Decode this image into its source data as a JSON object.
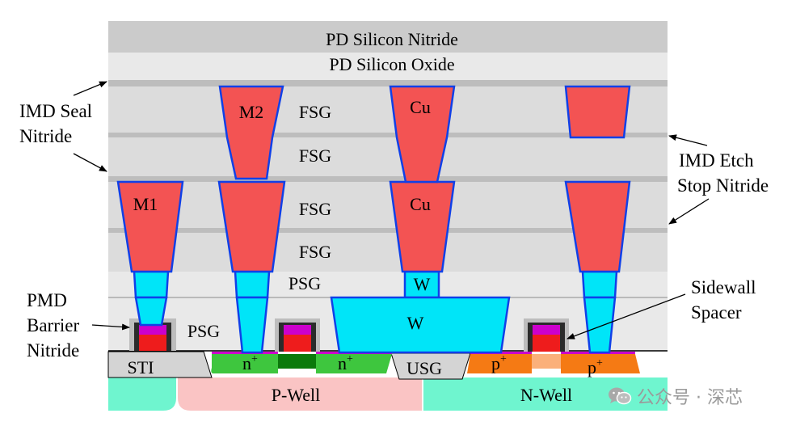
{
  "layers": {
    "pd_nitride": "PD Silicon Nitride",
    "pd_oxide": "PD Silicon Oxide",
    "fsg": "FSG",
    "psg": "PSG",
    "usg": "USG",
    "sti": "STI"
  },
  "metals": {
    "m2": "M2",
    "m1": "M1",
    "cu": "Cu",
    "w": "W"
  },
  "doping": {
    "n": "n",
    "p": "p",
    "plus": "+",
    "p_well": "P-Well",
    "n_well": "N-Well"
  },
  "callouts": {
    "imd_seal": [
      "IMD Seal",
      "Nitride"
    ],
    "imd_etch": [
      "IMD Etch",
      "Stop Nitride"
    ],
    "pmd_barrier": [
      "PMD",
      "Barrier",
      "Nitride"
    ],
    "sidewall": [
      "Sidewall",
      "Spacer"
    ]
  },
  "watermark": "公众号 · 深芯",
  "colors": {
    "copper": "#f35353",
    "tungsten": "#00e5f8",
    "barrier": "#1040e8",
    "n_plus": "#3ec63e",
    "p_plus": "#f57a14",
    "p_well": "#fac4c4",
    "n_well": "#6ff5cf",
    "gate_silicide": "#cc00cc"
  }
}
